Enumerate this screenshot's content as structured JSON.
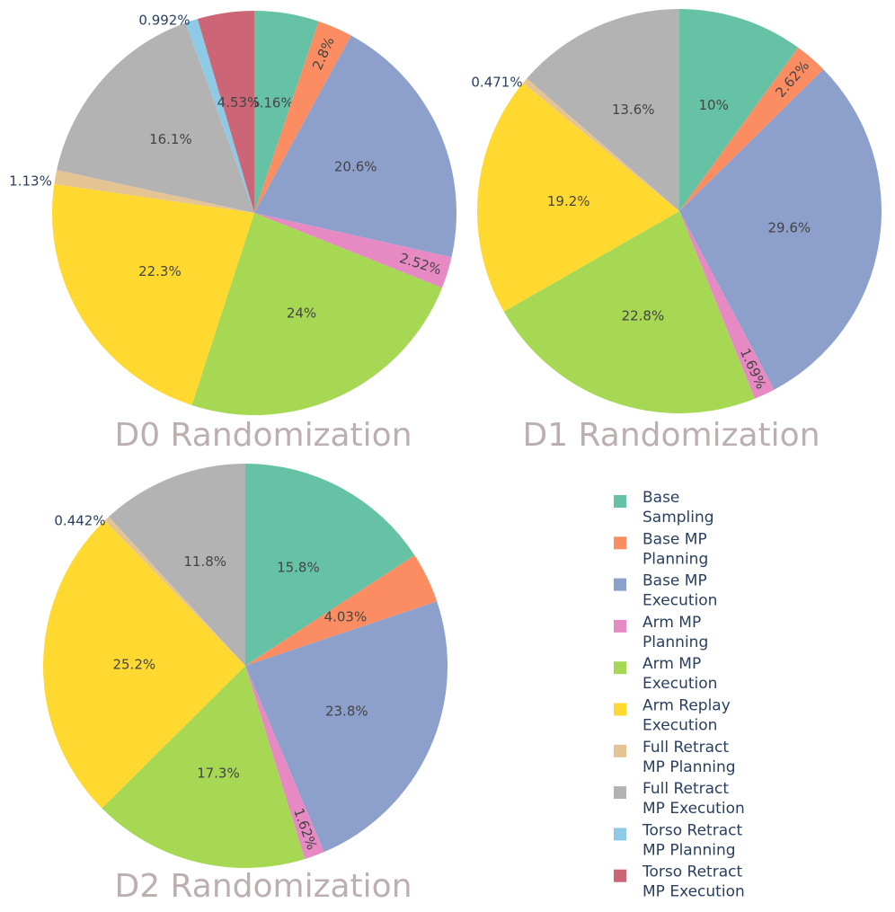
{
  "chart_data": [
    {
      "type": "pie",
      "title": "D0 Randomization",
      "categories": [
        "Base Sampling",
        "Base MP Planning",
        "Base MP Execution",
        "Arm MP Planning",
        "Arm MP Execution",
        "Arm Replay Execution",
        "Full Retract MP Planning",
        "Full Retract MP Execution",
        "Torso Retract MP Planning",
        "Torso Retract MP Execution"
      ],
      "values": [
        5.16,
        2.8,
        20.6,
        2.52,
        24,
        22.3,
        1.13,
        16.1,
        0.992,
        4.53
      ],
      "labels": [
        "5.16%",
        "2.8%",
        "20.6%",
        "2.52%",
        "24%",
        "22.3%",
        "1.13%",
        "16.1%",
        "0.992%",
        "4.53%"
      ]
    },
    {
      "type": "pie",
      "title": "D1 Randomization",
      "categories": [
        "Base Sampling",
        "Base MP Planning",
        "Base MP Execution",
        "Arm MP Planning",
        "Arm MP Execution",
        "Arm Replay Execution",
        "Full Retract MP Planning",
        "Full Retract MP Execution"
      ],
      "values": [
        10,
        2.62,
        29.6,
        1.69,
        22.8,
        19.2,
        0.471,
        13.6
      ],
      "labels": [
        "10%",
        "2.62%",
        "29.6%",
        "1.69%",
        "22.8%",
        "19.2%",
        "0.471%",
        "13.6%"
      ]
    },
    {
      "type": "pie",
      "title": "D2 Randomization",
      "categories": [
        "Base Sampling",
        "Base MP Planning",
        "Base MP Execution",
        "Arm MP Planning",
        "Arm MP Execution",
        "Arm Replay Execution",
        "Full Retract MP Planning",
        "Full Retract MP Execution"
      ],
      "values": [
        15.8,
        4.03,
        23.8,
        1.62,
        17.3,
        25.2,
        0.442,
        11.8
      ],
      "labels": [
        "15.8%",
        "4.03%",
        "23.8%",
        "1.62%",
        "17.3%",
        "25.2%",
        "0.442%",
        "11.8%"
      ]
    }
  ],
  "legend": {
    "placement": "bottom-right",
    "items": [
      {
        "line1": "Base",
        "line2": "Sampling",
        "color": "#66c2a5"
      },
      {
        "line1": "Base MP",
        "line2": "Planning",
        "color": "#fc8d62"
      },
      {
        "line1": "Base MP",
        "line2": "Execution",
        "color": "#8da0cb"
      },
      {
        "line1": "Arm MP",
        "line2": "Planning",
        "color": "#e78ac3"
      },
      {
        "line1": "Arm MP",
        "line2": "Execution",
        "color": "#a6d854"
      },
      {
        "line1": "Arm Replay",
        "line2": "Execution",
        "color": "#ffd92f"
      },
      {
        "line1": "Full Retract",
        "line2": "MP Planning",
        "color": "#e5c494"
      },
      {
        "line1": "Full Retract",
        "line2": "MP Execution",
        "color": "#b3b3b3"
      },
      {
        "line1": "Torso Retract",
        "line2": "MP Planning",
        "color": "#8ecae6"
      },
      {
        "line1": "Torso Retract",
        "line2": "MP Execution",
        "color": "#cc6677"
      }
    ]
  }
}
